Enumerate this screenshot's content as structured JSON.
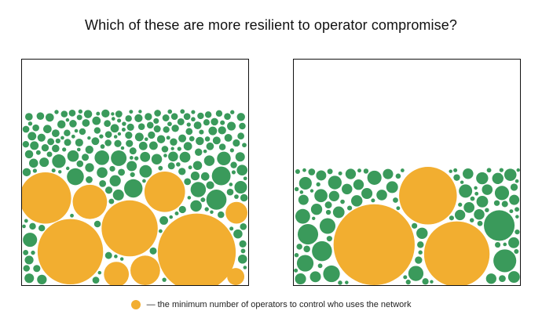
{
  "title": "Which of these are more resilient to operator compromise?",
  "legend": {
    "text": "— the minimum number of operators to control who uses the network"
  },
  "colors": {
    "operator_gold": "#F2AE30",
    "node_green": "#3A9A5B",
    "panel_border": "#111111",
    "background": "#FFFFFF"
  },
  "panels": [
    {
      "name": "left",
      "seed": 17,
      "green_fill_level_from_top": 0.22,
      "green_min_radius_small": 4.2,
      "green_max_radius_small": 5.6
    },
    {
      "name": "right",
      "seed": 42,
      "green_fill_level_from_top": 0.48,
      "green_min_radius_small": 6.5,
      "green_max_radius_small": 9.5
    }
  ]
}
